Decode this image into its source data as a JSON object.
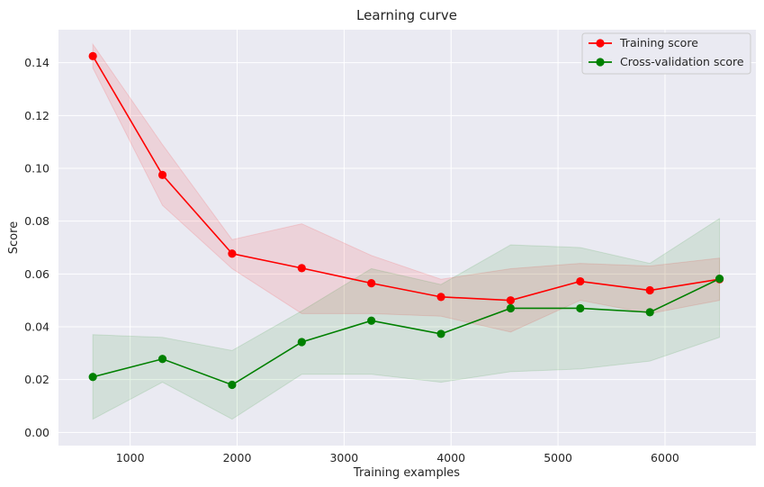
{
  "chart_data": {
    "type": "line",
    "title": "Learning curve",
    "xlabel": "Training examples",
    "ylabel": "Score",
    "xlim": [
      330,
      6850
    ],
    "ylim": [
      -0.005,
      0.1525
    ],
    "x_ticks": [
      1000,
      2000,
      3000,
      4000,
      5000,
      6000
    ],
    "y_ticks": [
      0.0,
      0.02,
      0.04,
      0.06,
      0.08,
      0.1,
      0.12,
      0.14
    ],
    "y_tick_labels": [
      "0.00",
      "0.02",
      "0.04",
      "0.06",
      "0.08",
      "0.10",
      "0.12",
      "0.14"
    ],
    "grid": true,
    "legend_position": "top-right",
    "x": [
      651,
      1302,
      1953,
      2604,
      3255,
      3906,
      4557,
      5208,
      5859,
      6510
    ],
    "series": [
      {
        "name": "Training score",
        "color": "#ff0000",
        "values": [
          0.1425,
          0.0975,
          0.0677,
          0.0622,
          0.0565,
          0.0513,
          0.05,
          0.0572,
          0.0538,
          0.058
        ],
        "band_upper": [
          0.147,
          0.109,
          0.073,
          0.079,
          0.067,
          0.058,
          0.062,
          0.064,
          0.063,
          0.066
        ],
        "band_lower": [
          0.138,
          0.086,
          0.062,
          0.045,
          0.045,
          0.044,
          0.038,
          0.05,
          0.045,
          0.05
        ]
      },
      {
        "name": "Cross-validation score",
        "color": "#008000",
        "values": [
          0.021,
          0.0278,
          0.018,
          0.0342,
          0.0423,
          0.0373,
          0.047,
          0.047,
          0.0455,
          0.0582
        ],
        "band_upper": [
          0.037,
          0.036,
          0.031,
          0.046,
          0.062,
          0.056,
          0.071,
          0.07,
          0.064,
          0.081
        ],
        "band_lower": [
          0.005,
          0.019,
          0.005,
          0.022,
          0.022,
          0.019,
          0.023,
          0.024,
          0.027,
          0.036
        ]
      }
    ]
  }
}
